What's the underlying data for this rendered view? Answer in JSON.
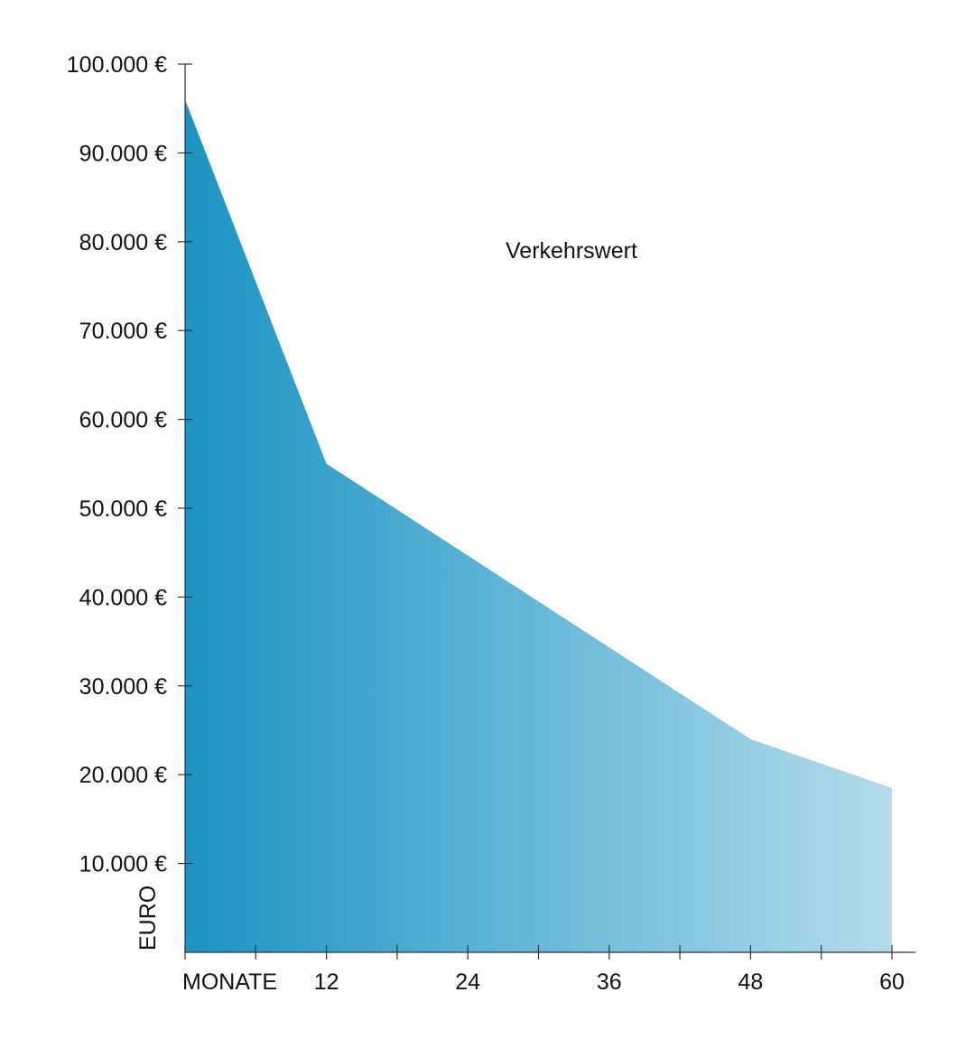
{
  "chart_data": {
    "type": "area",
    "x": [
      0,
      12,
      48,
      60
    ],
    "series": [
      {
        "name": "Verkehrswert",
        "values": [
          96000,
          55000,
          24000,
          18500
        ]
      }
    ],
    "xlim": [
      0,
      60
    ],
    "ylim": [
      0,
      100000
    ],
    "x_ticks": [
      0,
      6,
      12,
      18,
      24,
      30,
      36,
      42,
      48,
      54,
      60
    ],
    "x_tick_labels": [
      {
        "value": 0,
        "label": "MONATE"
      },
      {
        "value": 12,
        "label": "12"
      },
      {
        "value": 24,
        "label": "24"
      },
      {
        "value": 36,
        "label": "36"
      },
      {
        "value": 48,
        "label": "48"
      },
      {
        "value": 60,
        "label": "60"
      }
    ],
    "y_ticks": [
      {
        "value": 10000,
        "label": "10.000 €"
      },
      {
        "value": 20000,
        "label": "20.000 €"
      },
      {
        "value": 30000,
        "label": "30.000 €"
      },
      {
        "value": 40000,
        "label": "40.000 €"
      },
      {
        "value": 50000,
        "label": "50.000 €"
      },
      {
        "value": 60000,
        "label": "60.000 €"
      },
      {
        "value": 70000,
        "label": "70.000 €"
      },
      {
        "value": 80000,
        "label": "80.000 €"
      },
      {
        "value": 90000,
        "label": "90.000 €"
      },
      {
        "value": 100000,
        "label": "100.000 €"
      }
    ],
    "ylabel": "EURO",
    "grid": false,
    "legend": {
      "position": "top-center",
      "entries": [
        "Verkehrswert"
      ]
    },
    "colors": {
      "gradient_start": "#1a94c2",
      "gradient_end": "#b3dcec",
      "legend_line_start": "#1a94c2",
      "legend_line_end": "#b3dcec",
      "axis": "#333333",
      "text": "#111111"
    }
  }
}
